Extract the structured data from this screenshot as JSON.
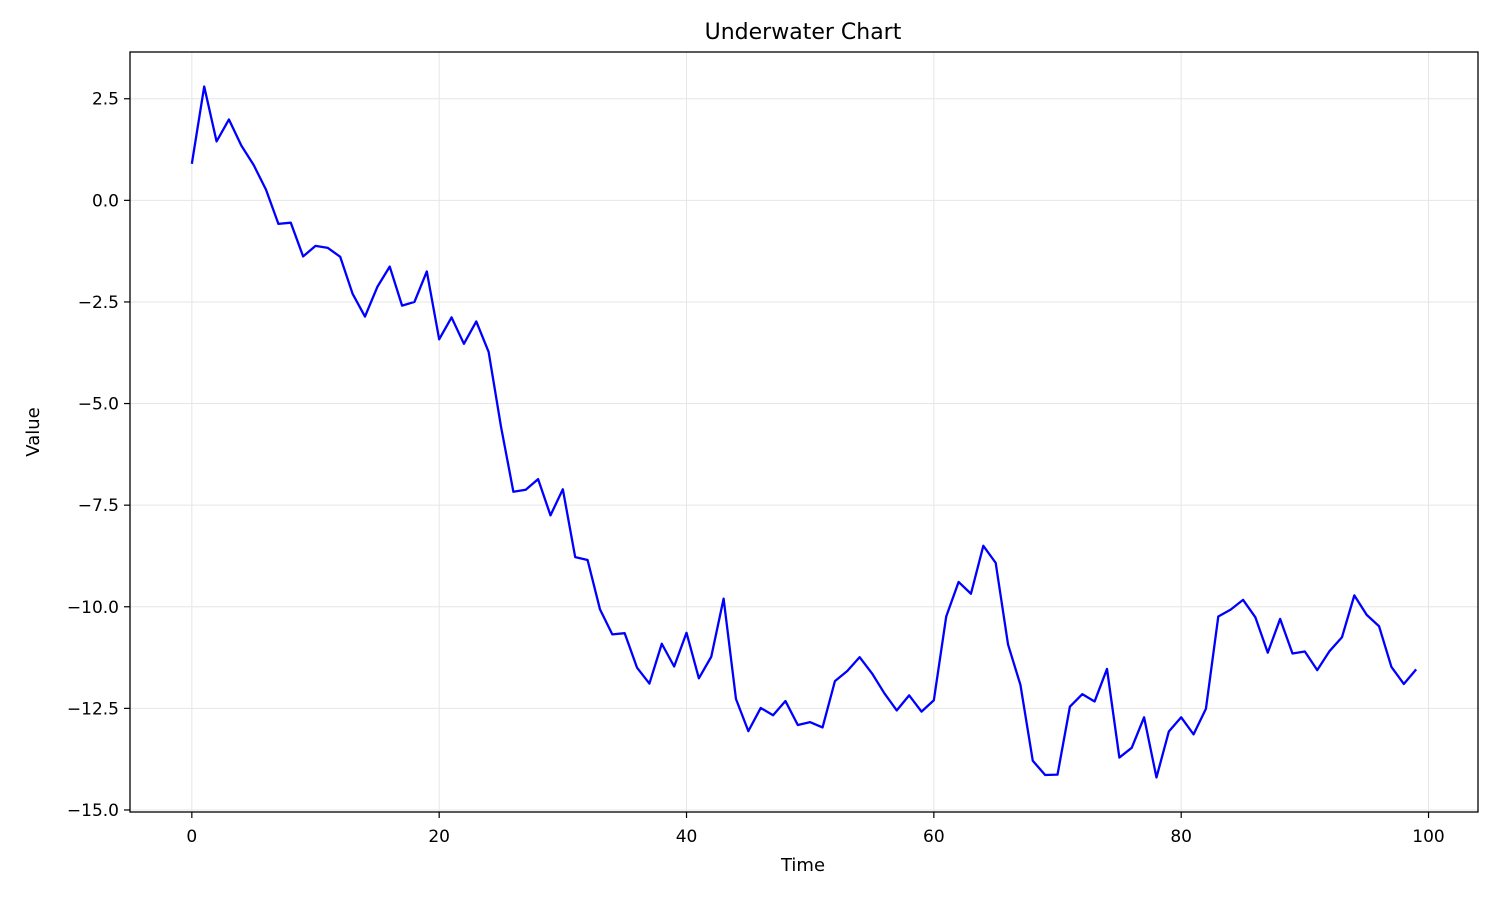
{
  "chart_data": {
    "type": "line",
    "title": "Underwater Chart",
    "xlabel": "Time",
    "ylabel": "Value",
    "xlim": [
      -5,
      104
    ],
    "ylim": [
      -15.05,
      3.65
    ],
    "xticks": [
      0,
      20,
      40,
      60,
      80,
      100
    ],
    "xtick_labels": [
      "0",
      "20",
      "40",
      "60",
      "80",
      "100"
    ],
    "yticks": [
      2.5,
      0,
      -2.5,
      -5,
      -7.5,
      -10,
      -12.5,
      -15
    ],
    "ytick_labels": [
      "2.5",
      "0.0",
      "−2.5",
      "−5.0",
      "−7.5",
      "−10.0",
      "−12.5",
      "−15.0"
    ],
    "grid": true,
    "colors": {
      "line": "#0000ff",
      "grid": "#e6e6e6",
      "axes": "#000000"
    },
    "series": [
      {
        "x": [
          0,
          1,
          2,
          3,
          4,
          5,
          6,
          7,
          8,
          9,
          10,
          11,
          12,
          13,
          14,
          15,
          16,
          17,
          18,
          19,
          20,
          21,
          22,
          23,
          24,
          25,
          26,
          27,
          28,
          29,
          30,
          31,
          32,
          33,
          34,
          35,
          36,
          37,
          38,
          39,
          40,
          41,
          42,
          43,
          44,
          45,
          46,
          47,
          48,
          49,
          50,
          51,
          52,
          53,
          54,
          55,
          56,
          57,
          58,
          59,
          60,
          61,
          62,
          63,
          64,
          65,
          66,
          67,
          68,
          69,
          70,
          71,
          72,
          73,
          74,
          75,
          76,
          77,
          78,
          79,
          80,
          81,
          82,
          83,
          84,
          85,
          86,
          87,
          88,
          89,
          90,
          91,
          92,
          93,
          94,
          95,
          96,
          97,
          98,
          99
        ],
        "values": [
          0.9,
          2.8,
          1.45,
          1.99,
          1.35,
          0.87,
          0.26,
          -0.58,
          -0.55,
          -1.38,
          -1.12,
          -1.17,
          -1.39,
          -2.3,
          -2.86,
          -2.13,
          -1.63,
          -2.59,
          -2.5,
          -1.75,
          -3.42,
          -2.88,
          -3.53,
          -2.98,
          -3.73,
          -5.57,
          -7.17,
          -7.12,
          -6.86,
          -7.75,
          -7.11,
          -8.78,
          -8.85,
          -10.06,
          -10.68,
          -10.65,
          -11.5,
          -11.89,
          -10.91,
          -11.47,
          -10.64,
          -11.76,
          -11.23,
          -9.8,
          -12.27,
          -13.06,
          -12.49,
          -12.67,
          -12.32,
          -12.91,
          -12.84,
          -12.97,
          -11.83,
          -11.58,
          -11.24,
          -11.64,
          -12.13,
          -12.55,
          -12.18,
          -12.58,
          -12.3,
          -10.24,
          -9.39,
          -9.68,
          -8.5,
          -8.92,
          -10.93,
          -11.92,
          -13.79,
          -14.14,
          -14.13,
          -12.46,
          -12.15,
          -12.33,
          -11.53,
          -13.71,
          -13.47,
          -12.72,
          -14.2,
          -13.07,
          -12.72,
          -13.14,
          -12.51,
          -10.24,
          -10.07,
          -9.83,
          -10.26,
          -11.13,
          -10.3,
          -11.15,
          -11.1,
          -11.56,
          -11.09,
          -10.75,
          -9.72,
          -10.2,
          -10.48,
          -11.48,
          -11.9,
          -11.54
        ]
      }
    ]
  }
}
